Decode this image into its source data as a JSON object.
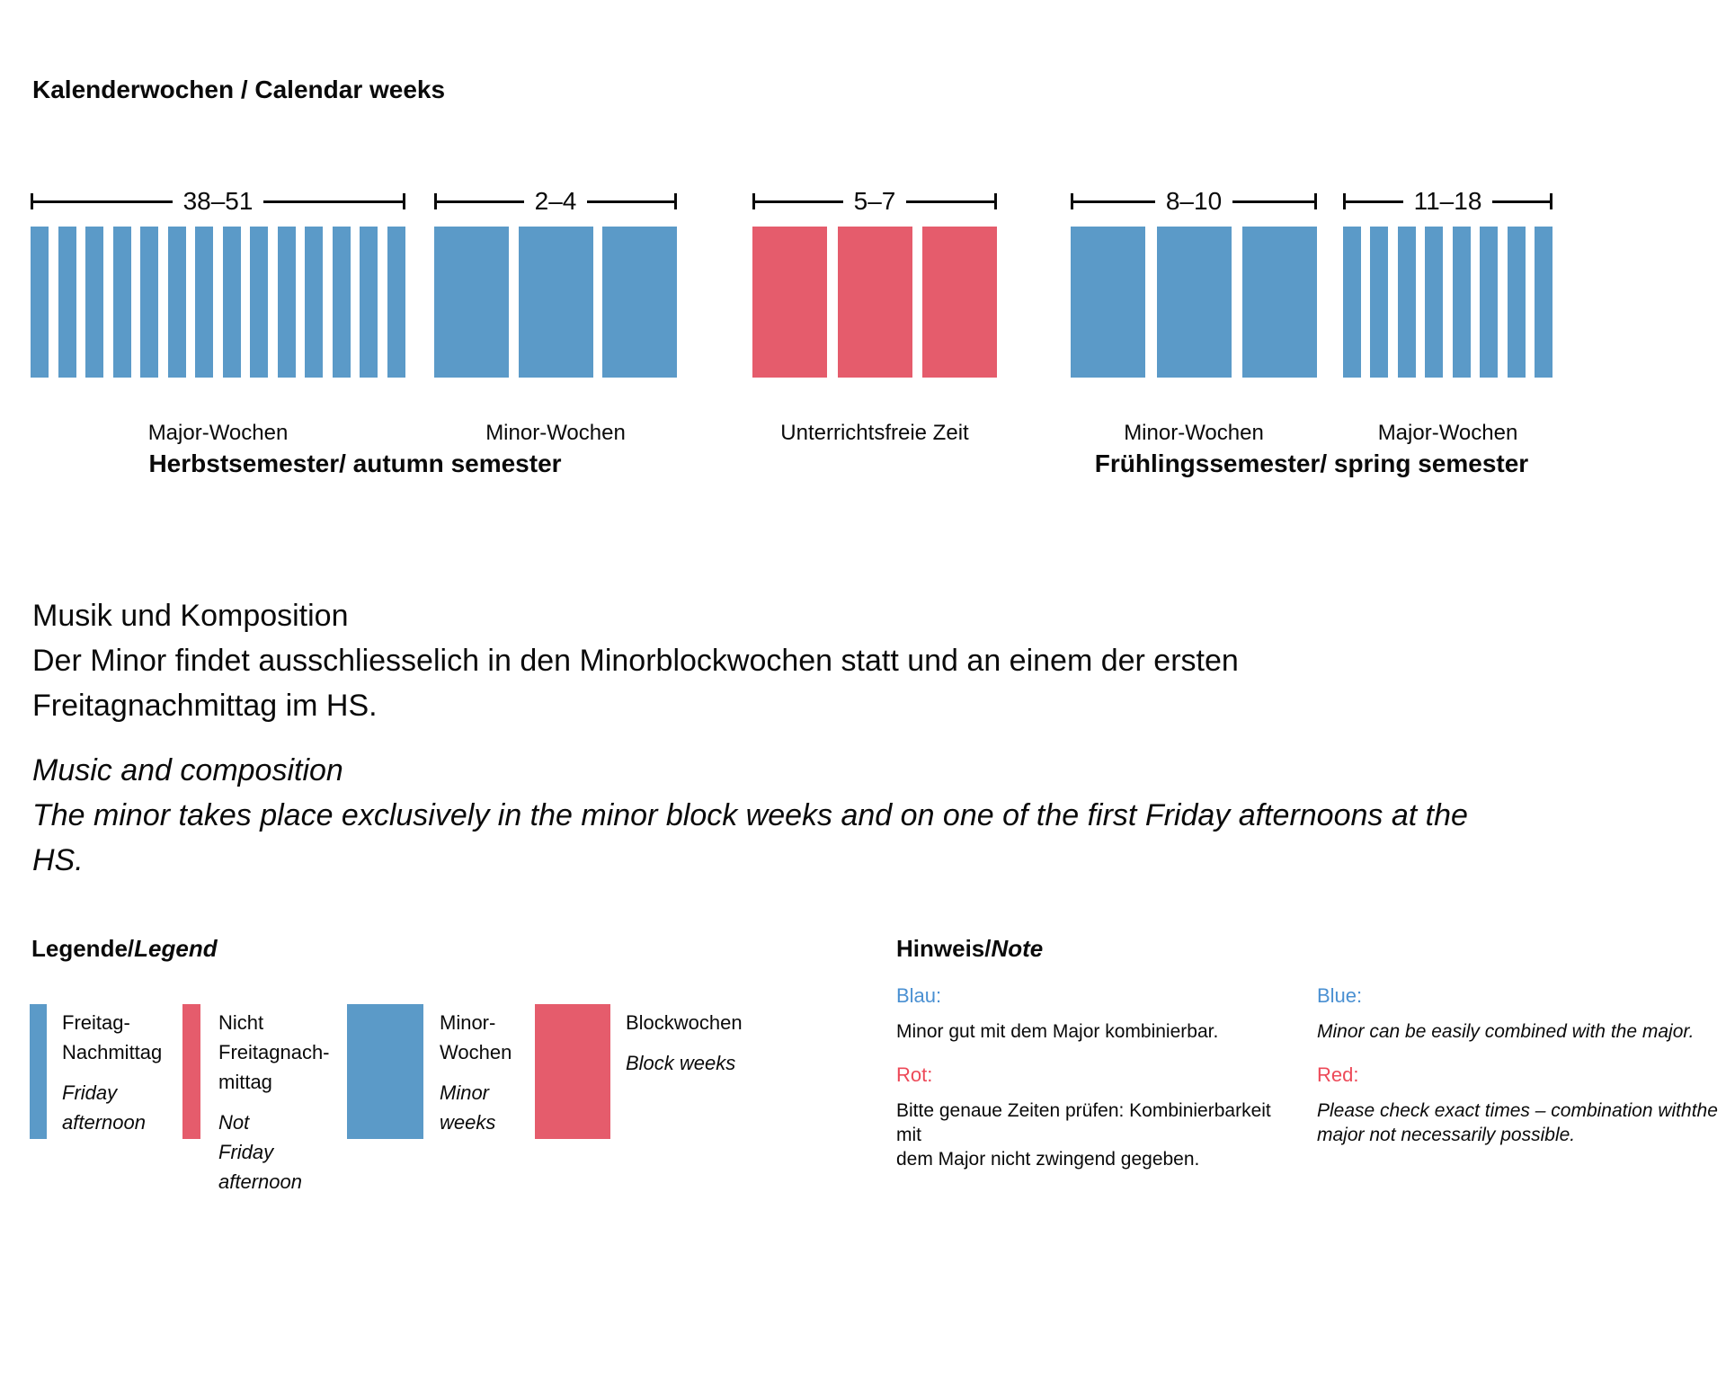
{
  "page": {
    "title": "Kalenderwochen / Calendar weeks"
  },
  "colors": {
    "blue": "#5b9ac8",
    "red": "#e55c6c",
    "blue_text": "#4a90d2",
    "red_text": "#ed4958"
  },
  "chart_data": {
    "type": "calendar-week-blocks",
    "groups": [
      {
        "range": "38–51",
        "label": "Major-Wochen",
        "bar_type": "thin",
        "color": "blue",
        "bar_count": 14
      },
      {
        "range": "2–4",
        "label": "Minor-Wochen",
        "bar_type": "wide",
        "color": "blue",
        "bar_count": 3
      },
      {
        "range": "5–7",
        "label": "Unterrichtsfreie Zeit",
        "bar_type": "wide",
        "color": "red",
        "bar_count": 3
      },
      {
        "range": "8–10",
        "label": "Minor-Wochen",
        "bar_type": "wide",
        "color": "blue",
        "bar_count": 3
      },
      {
        "range": "11–18",
        "label": "Major-Wochen",
        "bar_type": "thin",
        "color": "blue",
        "bar_count": 8
      }
    ],
    "semesters": [
      {
        "label": "Herbstsemester/ autumn semester"
      },
      {
        "label": "Frühlingssemester/ spring semester"
      }
    ]
  },
  "paragraphs": {
    "german": [
      "Musik und Komposition",
      "Der Minor findet ausschliesselich in den Minorblockwochen statt und an einem der ersten",
      "Freitagnachmittag im HS."
    ],
    "english": [
      "Music and composition",
      "The minor takes place exclusively in the minor block weeks and on one of the first Friday afternoons at the",
      "HS."
    ]
  },
  "legend": {
    "heading_prefix": "Legende/",
    "heading_italic": "Legend",
    "items": [
      {
        "swatch": "thin",
        "color": "blue",
        "de_lines": [
          "Freitag-",
          "Nachmittag"
        ],
        "en_lines": [
          "Friday",
          "afternoon"
        ]
      },
      {
        "swatch": "thin",
        "color": "red",
        "de_lines": [
          "Nicht",
          "Freitagnach-",
          "mittag"
        ],
        "en_lines": [
          "Not",
          "Friday",
          "afternoon"
        ]
      },
      {
        "swatch": "wide",
        "color": "blue",
        "de_lines": [
          "Minor-",
          "Wochen"
        ],
        "en_lines": [
          "Minor",
          "weeks"
        ]
      },
      {
        "swatch": "wide",
        "color": "red",
        "de_lines": [
          "Blockwochen"
        ],
        "en_lines": [
          "Block weeks"
        ]
      }
    ]
  },
  "note": {
    "heading_prefix": "Hinweis/",
    "heading_italic": "Note",
    "german": {
      "blue_label": "Blau:",
      "blue_lines": [
        "Minor gut mit dem Major kombinierbar."
      ],
      "red_label": "Rot:",
      "red_lines": [
        "Bitte genaue Zeiten prüfen: Kombinierbarkeit mit",
        "dem Major nicht zwingend gegeben."
      ]
    },
    "english": {
      "blue_label": "Blue:",
      "blue_lines": [
        "Minor can be easily combined with the major."
      ],
      "red_label": "Red:",
      "red_lines": [
        "Please check exact times – combination withthe",
        "major not necessarily possible."
      ]
    }
  }
}
